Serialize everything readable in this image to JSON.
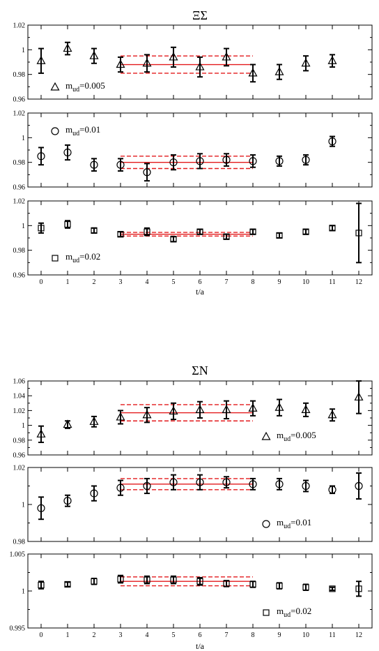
{
  "figures": [
    {
      "title": "ΞΣ",
      "xlabel": "t/a"
    },
    {
      "title": "ΣN",
      "xlabel": "t/a"
    }
  ],
  "chart_data": [
    {
      "type": "scatter",
      "figure": 0,
      "symbol": "triangle",
      "legend": "m_ud=0.005",
      "legend_sub": "ud",
      "legend_val": "=0.005",
      "xlim": [
        -0.5,
        12.5
      ],
      "ylim": [
        0.96,
        1.02
      ],
      "yticks": [
        0.96,
        0.98,
        1,
        1.02
      ],
      "yticklabels": [
        "0.96",
        "0.98",
        "1",
        "1.02"
      ],
      "xticks": [
        0,
        1,
        2,
        3,
        4,
        5,
        6,
        7,
        8,
        9,
        10,
        11,
        12
      ],
      "show_xticklabels": false,
      "x": [
        0,
        1,
        2,
        3,
        4,
        5,
        6,
        7,
        8,
        9,
        10,
        11
      ],
      "y": [
        0.991,
        1.001,
        0.995,
        0.988,
        0.989,
        0.994,
        0.986,
        0.994,
        0.981,
        0.982,
        0.989,
        0.991
      ],
      "err": [
        0.01,
        0.005,
        0.006,
        0.006,
        0.007,
        0.008,
        0.008,
        0.007,
        0.007,
        0.006,
        0.006,
        0.005
      ],
      "fit": {
        "x_range": [
          3,
          8
        ],
        "value": 0.988,
        "err": 0.007
      }
    },
    {
      "type": "scatter",
      "figure": 0,
      "symbol": "circle",
      "legend": "m_ud=0.01",
      "legend_sub": "ud",
      "legend_val": "=0.01",
      "xlim": [
        -0.5,
        12.5
      ],
      "ylim": [
        0.96,
        1.02
      ],
      "yticks": [
        0.96,
        0.98,
        1,
        1.02
      ],
      "yticklabels": [
        "0.96",
        "0.98",
        "1",
        "1.02"
      ],
      "xticks": [
        0,
        1,
        2,
        3,
        4,
        5,
        6,
        7,
        8,
        9,
        10,
        11,
        12
      ],
      "show_xticklabels": false,
      "x": [
        0,
        1,
        2,
        3,
        4,
        5,
        6,
        7,
        8,
        9,
        10,
        11
      ],
      "y": [
        0.985,
        0.988,
        0.978,
        0.978,
        0.972,
        0.98,
        0.981,
        0.982,
        0.981,
        0.981,
        0.982,
        0.997
      ],
      "err": [
        0.007,
        0.006,
        0.005,
        0.005,
        0.007,
        0.006,
        0.006,
        0.005,
        0.005,
        0.004,
        0.004,
        0.004
      ],
      "fit": {
        "x_range": [
          3,
          8
        ],
        "value": 0.98,
        "err": 0.005
      }
    },
    {
      "type": "scatter",
      "figure": 0,
      "symbol": "square",
      "legend": "m_ud=0.02",
      "legend_sub": "ud",
      "legend_val": "=0.02",
      "xlim": [
        -0.5,
        12.5
      ],
      "ylim": [
        0.96,
        1.02
      ],
      "yticks": [
        0.96,
        0.98,
        1,
        1.02
      ],
      "yticklabels": [
        "0.96",
        "0.98",
        "1",
        "1.02"
      ],
      "xticks": [
        0,
        1,
        2,
        3,
        4,
        5,
        6,
        7,
        8,
        9,
        10,
        11,
        12
      ],
      "xticklabels": [
        "0",
        "1",
        "2",
        "3",
        "4",
        "5",
        "6",
        "7",
        "8",
        "9",
        "10",
        "11",
        "12"
      ],
      "show_xticklabels": true,
      "x": [
        0,
        1,
        2,
        3,
        4,
        5,
        6,
        7,
        8,
        9,
        10,
        11,
        12
      ],
      "y": [
        0.998,
        1.001,
        0.996,
        0.993,
        0.995,
        0.989,
        0.995,
        0.991,
        0.995,
        0.992,
        0.995,
        0.998,
        0.994
      ],
      "err": [
        0.004,
        0.003,
        0.002,
        0.002,
        0.003,
        0.002,
        0.002,
        0.002,
        0.002,
        0.002,
        0.002,
        0.002,
        0.024
      ],
      "fit": {
        "x_range": [
          3,
          8
        ],
        "value": 0.993,
        "err": 0.0015
      }
    },
    {
      "type": "scatter",
      "figure": 1,
      "symbol": "triangle",
      "legend": "m_ud=0.005",
      "legend_sub": "ud",
      "legend_val": "=0.005",
      "xlim": [
        -0.5,
        12.5
      ],
      "ylim": [
        0.96,
        1.06
      ],
      "yticks": [
        0.96,
        0.98,
        1,
        1.02,
        1.04,
        1.06
      ],
      "yticklabels": [
        "0.96",
        "0.98",
        "1",
        "1.02",
        "1.04",
        "1.06"
      ],
      "xticks": [
        0,
        1,
        2,
        3,
        4,
        5,
        6,
        7,
        8,
        9,
        10,
        11,
        12
      ],
      "show_xticklabels": false,
      "x": [
        0,
        1,
        2,
        3,
        4,
        5,
        6,
        7,
        8,
        9,
        10,
        11,
        12
      ],
      "y": [
        0.988,
        1.001,
        1.005,
        1.011,
        1.014,
        1.019,
        1.021,
        1.021,
        1.023,
        1.024,
        1.021,
        1.014,
        1.038
      ],
      "err": [
        0.011,
        0.005,
        0.007,
        0.009,
        0.01,
        0.011,
        0.011,
        0.012,
        0.01,
        0.011,
        0.009,
        0.008,
        0.022
      ],
      "fit": {
        "x_range": [
          3,
          8
        ],
        "value": 1.017,
        "err": 0.011
      }
    },
    {
      "type": "scatter",
      "figure": 1,
      "symbol": "circle",
      "legend": "m_ud=0.01",
      "legend_sub": "ud",
      "legend_val": "=0.01",
      "xlim": [
        -0.5,
        12.5
      ],
      "ylim": [
        0.98,
        1.02
      ],
      "yticks": [
        0.98,
        1,
        1.02
      ],
      "yticklabels": [
        "0.98",
        "1",
        "1.02"
      ],
      "xticks": [
        0,
        1,
        2,
        3,
        4,
        5,
        6,
        7,
        8,
        9,
        10,
        11,
        12
      ],
      "show_xticklabels": false,
      "x": [
        0,
        1,
        2,
        3,
        4,
        5,
        6,
        7,
        8,
        9,
        10,
        11,
        12
      ],
      "y": [
        0.998,
        1.002,
        1.006,
        1.009,
        1.01,
        1.012,
        1.012,
        1.012,
        1.011,
        1.011,
        1.01,
        1.008,
        1.01
      ],
      "err": [
        0.006,
        0.003,
        0.004,
        0.004,
        0.004,
        0.004,
        0.004,
        0.003,
        0.003,
        0.003,
        0.003,
        0.002,
        0.007
      ],
      "fit": {
        "x_range": [
          3,
          8
        ],
        "value": 1.011,
        "err": 0.003
      }
    },
    {
      "type": "scatter",
      "figure": 1,
      "symbol": "square",
      "legend": "m_ud=0.02",
      "legend_sub": "ud",
      "legend_val": "=0.02",
      "xlim": [
        -0.5,
        12.5
      ],
      "ylim": [
        0.995,
        1.005
      ],
      "yticks": [
        0.995,
        1,
        1.005
      ],
      "yticklabels": [
        "0.995",
        "1",
        "1.005"
      ],
      "xticks": [
        0,
        1,
        2,
        3,
        4,
        5,
        6,
        7,
        8,
        9,
        10,
        11,
        12
      ],
      "xticklabels": [
        "0",
        "1",
        "2",
        "3",
        "4",
        "5",
        "6",
        "7",
        "8",
        "9",
        "10",
        "11",
        "12"
      ],
      "show_xticklabels": true,
      "x": [
        0,
        1,
        2,
        3,
        4,
        5,
        6,
        7,
        8,
        9,
        10,
        11,
        12
      ],
      "y": [
        1.0008,
        1.0009,
        1.0013,
        1.0016,
        1.0015,
        1.0015,
        1.0013,
        1.001,
        1.0009,
        1.0007,
        1.0005,
        1.0003,
        1.0003
      ],
      "err": [
        0.0005,
        0.0003,
        0.0004,
        0.0005,
        0.0005,
        0.0005,
        0.0005,
        0.0004,
        0.0004,
        0.0004,
        0.0004,
        0.0002,
        0.001
      ],
      "fit": {
        "x_range": [
          3,
          8
        ],
        "value": 1.0013,
        "err": 0.0006
      }
    }
  ]
}
